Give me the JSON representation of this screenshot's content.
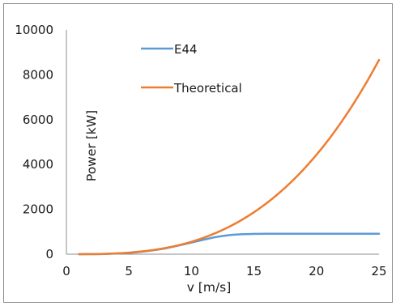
{
  "chart_data": {
    "type": "line",
    "xlabel": "v [m/s]",
    "ylabel": "Power [kW]",
    "xlim": [
      0,
      25
    ],
    "ylim": [
      0,
      10000
    ],
    "x_ticks": [
      0,
      5,
      10,
      15,
      20,
      25
    ],
    "y_ticks": [
      0,
      2000,
      4000,
      6000,
      8000,
      10000
    ],
    "grid": false,
    "legend_position": "top-center",
    "series": [
      {
        "name": "E44",
        "color": "#5b9bd5",
        "x": [
          1,
          2,
          3,
          4,
          5,
          6,
          7,
          8,
          9,
          10,
          11,
          12,
          13,
          14,
          15,
          16,
          17,
          18,
          19,
          20,
          21,
          22,
          23,
          24,
          25
        ],
        "y": [
          0,
          2,
          10,
          30,
          60,
          110,
          180,
          270,
          390,
          520,
          650,
          770,
          850,
          890,
          905,
          910,
          910,
          910,
          910,
          910,
          910,
          910,
          910,
          910,
          910
        ]
      },
      {
        "name": "Theoretical",
        "color": "#ed7d31",
        "x": [
          1,
          2,
          3,
          4,
          5,
          6,
          7,
          8,
          9,
          10,
          11,
          12,
          13,
          14,
          15,
          16,
          17,
          18,
          19,
          20,
          21,
          22,
          23,
          24,
          25
        ],
        "y": [
          0.6,
          4.4,
          15,
          35,
          69,
          120,
          190,
          284,
          404,
          554,
          738,
          958,
          1218,
          1521,
          1871,
          2270,
          2723,
          3232,
          3800,
          4433,
          5132,
          5901,
          6743,
          7661,
          8660
        ]
      }
    ]
  }
}
